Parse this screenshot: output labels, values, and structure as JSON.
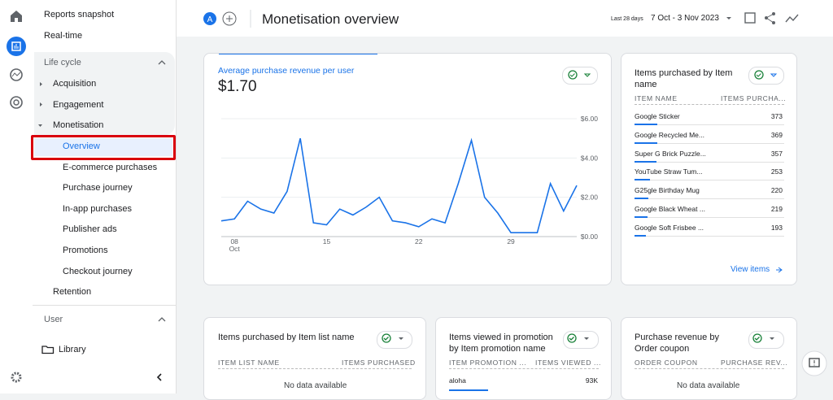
{
  "header": {
    "avatar": "A",
    "title": "Monetisation overview",
    "date_label": "Last 28 days",
    "date_range": "7 Oct - 3 Nov 2023"
  },
  "sidebar": {
    "items": [
      "Reports snapshot",
      "Real-time",
      "Life cycle",
      "Acquisition",
      "Engagement",
      "Monetisation",
      "Overview",
      "E-commerce purchases",
      "Purchase journey",
      "In-app purchases",
      "Publisher ads",
      "Promotions",
      "Checkout journey",
      "Retention",
      "User",
      "Library"
    ]
  },
  "chart_data": {
    "type": "line",
    "title": "Average purchase revenue per user",
    "headline": "$1.70",
    "color": "#1a73e8",
    "categories": [
      null,
      "08",
      null,
      null,
      null,
      null,
      null,
      null,
      "15",
      null,
      null,
      null,
      null,
      null,
      null,
      "22",
      null,
      null,
      null,
      null,
      null,
      null,
      "29",
      null,
      null,
      null,
      null,
      null
    ],
    "x_month": "Oct",
    "values": [
      0.8,
      0.9,
      1.8,
      1.4,
      1.2,
      2.3,
      5.0,
      0.7,
      0.6,
      1.4,
      1.1,
      1.5,
      2.0,
      0.8,
      0.7,
      0.5,
      0.9,
      0.7,
      2.7,
      4.9,
      2.0,
      1.2,
      0.2,
      0.2,
      0.2,
      2.7,
      1.3,
      2.6
    ],
    "ylim": [
      0,
      6
    ],
    "yticks": [
      {
        "value": 0,
        "label": "$0.00"
      },
      {
        "value": 2,
        "label": "$2.00"
      },
      {
        "value": 4,
        "label": "$4.00"
      },
      {
        "value": 6,
        "label": "$6.00"
      }
    ],
    "grid": true
  },
  "tables": [
    {
      "title": "Items purchased by Item name",
      "columns": [
        "ITEM NAME",
        "ITEMS PURCHA..."
      ],
      "rows": [
        [
          "Google Sticker",
          373
        ],
        [
          "Google Recycled Me...",
          369
        ],
        [
          "Super G Brick Puzzle...",
          357
        ],
        [
          "YouTube Straw Tum...",
          253
        ],
        [
          "G25gle Birthday Mug",
          220
        ],
        [
          "Google Black Wheat ...",
          219
        ],
        [
          "Google Soft Frisbee ...",
          193
        ]
      ],
      "link": "View items"
    },
    {
      "title": "Items purchased by Item list name",
      "columns": [
        "ITEM LIST NAME",
        "ITEMS PURCHASED"
      ],
      "empty": "No data available"
    },
    {
      "title": "Items viewed in promotion by Item promotion name",
      "columns": [
        "ITEM PROMOTION ...",
        "ITEMS VIEWED ..."
      ],
      "rows": [
        [
          "aloha",
          "93K"
        ]
      ]
    },
    {
      "title": "Purchase revenue by Order coupon",
      "columns": [
        "ORDER COUPON",
        "PURCHASE REV..."
      ],
      "empty": "No data available"
    }
  ]
}
